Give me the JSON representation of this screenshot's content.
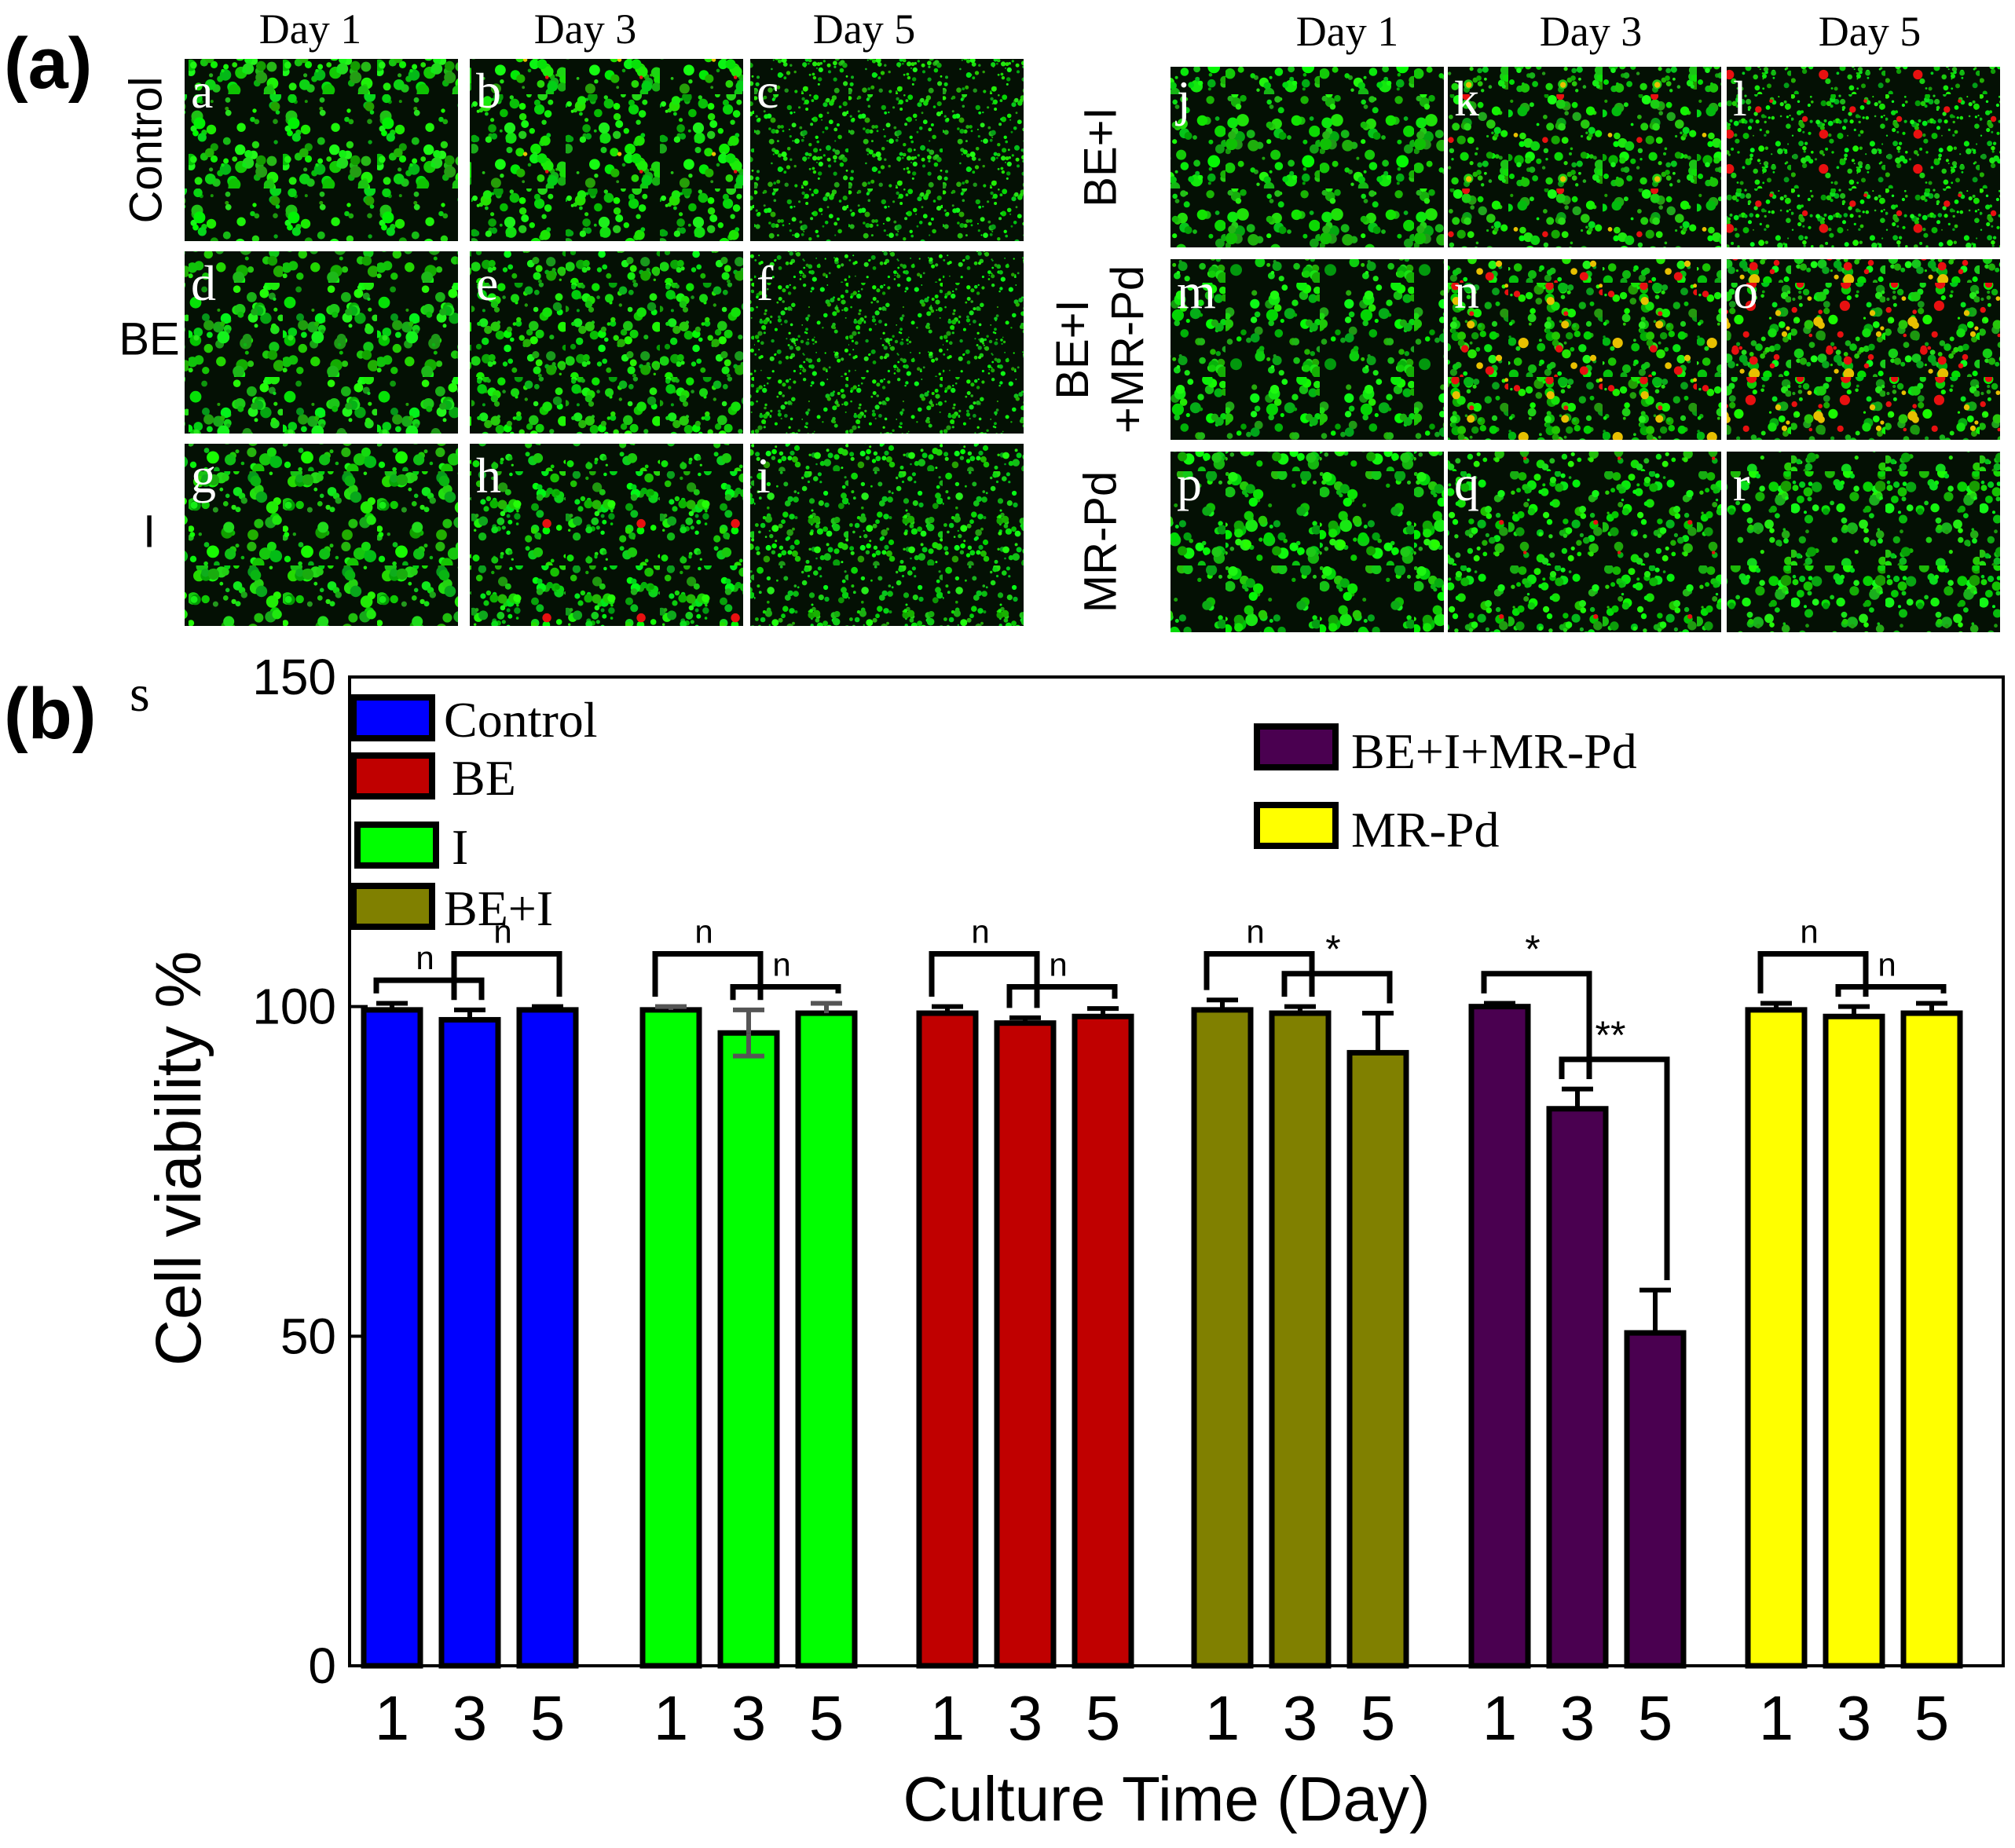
{
  "figure": {
    "panel_a_label": "(a)",
    "panel_b_label": "(b)",
    "panel_s_label": "s"
  },
  "micrographs": {
    "day_headers": [
      "Day 1",
      "Day 3",
      "Day 5"
    ],
    "left_rows": [
      {
        "group": "Control",
        "tiles": [
          "a",
          "b",
          "c"
        ],
        "red_level": [
          0.0,
          0.03,
          0.0
        ],
        "cell_size": [
          1.0,
          0.9,
          0.45
        ]
      },
      {
        "group": "BE",
        "tiles": [
          "d",
          "e",
          "f"
        ],
        "red_level": [
          0.0,
          0.0,
          0.0
        ],
        "cell_size": [
          1.0,
          0.8,
          0.4
        ]
      },
      {
        "group": "I",
        "tiles": [
          "g",
          "h",
          "i"
        ],
        "red_level": [
          0.0,
          0.02,
          0.0
        ],
        "cell_size": [
          1.0,
          0.8,
          0.6
        ]
      }
    ],
    "right_rows": [
      {
        "group": "BE+I",
        "tiles": [
          "j",
          "k",
          "l"
        ],
        "red_level": [
          0.0,
          0.06,
          0.08
        ],
        "cell_size": [
          1.0,
          0.8,
          0.5
        ]
      },
      {
        "group": "BE+I\n+MR-Pd",
        "tiles": [
          "m",
          "n",
          "o"
        ],
        "red_level": [
          0.0,
          0.22,
          0.35
        ],
        "cell_size": [
          1.0,
          0.8,
          0.8
        ]
      },
      {
        "group": "MR-Pd",
        "tiles": [
          "p",
          "q",
          "r"
        ],
        "red_level": [
          0.0,
          0.04,
          0.0
        ],
        "cell_size": [
          1.0,
          0.8,
          0.9
        ]
      }
    ]
  },
  "chart_data": {
    "type": "bar",
    "title": "",
    "xlabel": "Culture Time (Day)",
    "ylabel": "Cell viability %",
    "ylim": [
      0,
      150
    ],
    "yticks": [
      0,
      50,
      100,
      150
    ],
    "grid": false,
    "legend": [
      {
        "label": "Control",
        "color": "#0000ff"
      },
      {
        "label": "BE",
        "color": "#c00000"
      },
      {
        "label": "I",
        "color": "#00ff00"
      },
      {
        "label": "BE+I",
        "color": "#808000"
      },
      {
        "label": "BE+I+MR-Pd",
        "color": "#4a0050"
      },
      {
        "label": "MR-Pd",
        "color": "#ffff00"
      }
    ],
    "groups": [
      {
        "name": "Control",
        "color": "#0000ff",
        "days": [
          "1",
          "3",
          "5"
        ],
        "values": [
          99.5,
          98.0,
          99.5
        ],
        "errors": [
          1.0,
          1.5,
          0.5
        ],
        "sig": [
          {
            "label": "n",
            "from": 0,
            "to": 1,
            "y": 104
          },
          {
            "label": "n",
            "from": 1,
            "to": 2,
            "y": 108
          }
        ]
      },
      {
        "name": "I",
        "color": "#00ff00",
        "days": [
          "1",
          "3",
          "5"
        ],
        "values": [
          99.5,
          96.0,
          99.0
        ],
        "errors": [
          0.5,
          3.5,
          1.5
        ],
        "sig": [
          {
            "label": "n",
            "from": 0,
            "to": 1,
            "y": 108
          },
          {
            "label": "n",
            "from": 1,
            "to": 2,
            "y": 103
          }
        ]
      },
      {
        "name": "BE",
        "color": "#c00000",
        "days": [
          "1",
          "3",
          "5"
        ],
        "values": [
          99.0,
          97.5,
          98.5
        ],
        "errors": [
          1.0,
          0.8,
          1.2
        ],
        "sig": [
          {
            "label": "n",
            "from": 0,
            "to": 1,
            "y": 108
          },
          {
            "label": "n",
            "from": 1,
            "to": 2,
            "y": 103
          }
        ]
      },
      {
        "name": "BE+I",
        "color": "#808000",
        "days": [
          "1",
          "3",
          "5"
        ],
        "values": [
          99.5,
          99.0,
          93.0
        ],
        "errors": [
          1.5,
          1.0,
          6.0
        ],
        "sig": [
          {
            "label": "n",
            "from": 0,
            "to": 1,
            "y": 108
          },
          {
            "label": "*",
            "from": 1,
            "to": 2,
            "y": 105
          }
        ]
      },
      {
        "name": "BE+I+MR-Pd",
        "color": "#4a0050",
        "days": [
          "1",
          "3",
          "5"
        ],
        "values": [
          100.0,
          84.5,
          50.5
        ],
        "errors": [
          0.5,
          3.0,
          6.5
        ],
        "sig": [
          {
            "label": "*",
            "from": 0,
            "to": 1,
            "y": 105
          },
          {
            "label": "**",
            "from": 1,
            "to": 2,
            "y": 92
          }
        ]
      },
      {
        "name": "MR-Pd",
        "color": "#ffff00",
        "days": [
          "1",
          "3",
          "5"
        ],
        "values": [
          99.5,
          98.5,
          99.0
        ],
        "errors": [
          1.0,
          1.5,
          1.5
        ],
        "sig": [
          {
            "label": "n",
            "from": 0,
            "to": 1,
            "y": 108
          },
          {
            "label": "n",
            "from": 1,
            "to": 2,
            "y": 103
          }
        ]
      }
    ]
  }
}
